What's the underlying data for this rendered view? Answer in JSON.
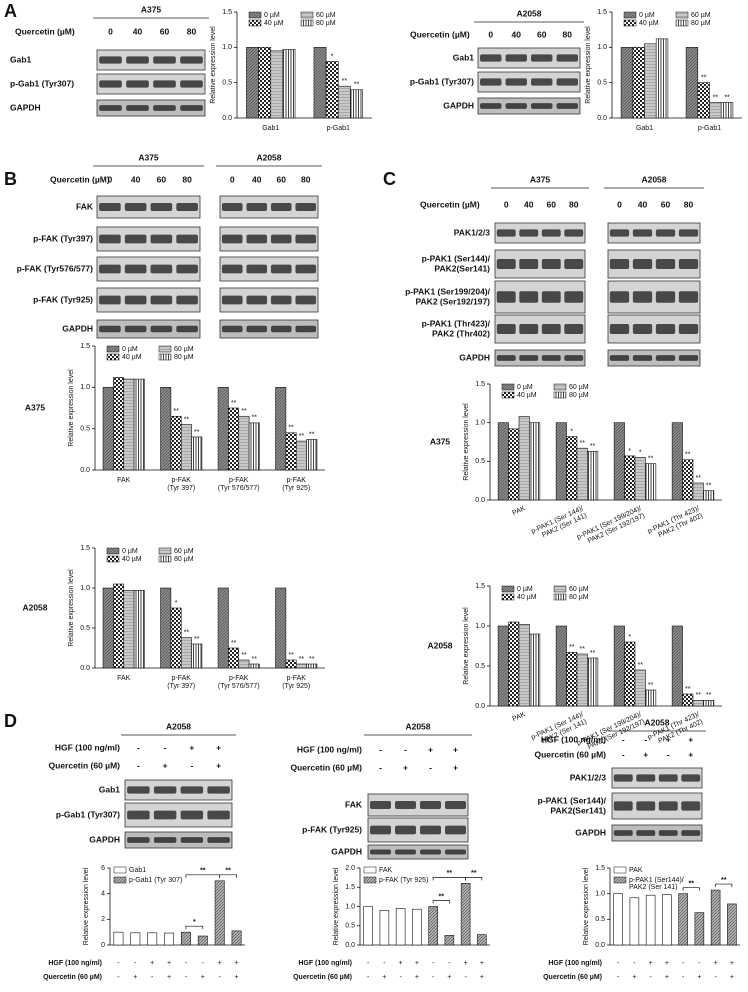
{
  "panel_letters": [
    "A",
    "B",
    "C",
    "D"
  ],
  "blots": [
    {
      "groups": [
        {
          "title": "A375",
          "doses": [
            "0",
            "40",
            "60",
            "80"
          ]
        }
      ],
      "treatment_label": "Quercetin (µM)",
      "rows": [
        "Gab1",
        "p-Gab1 (Tyr307)",
        "GAPDH"
      ]
    },
    {
      "groups": [
        {
          "title": "A2058",
          "doses": [
            "0",
            "40",
            "60",
            "80"
          ]
        }
      ],
      "treatment_label": "Quercetin (µM)",
      "rows": [
        "Gab1",
        "p-Gab1 (Tyr307)",
        "GAPDH"
      ]
    },
    {
      "groups": [
        {
          "title": "A375",
          "doses": [
            "0",
            "40",
            "60",
            "80"
          ]
        },
        {
          "title": "A2058",
          "doses": [
            "0",
            "40",
            "60",
            "80"
          ]
        }
      ],
      "treatment_label": "Quercetin (µM)",
      "rows": [
        "FAK",
        "p-FAK (Tyr397)",
        "p-FAK (Tyr576/577)",
        "p-FAK (Tyr925)",
        "GAPDH"
      ]
    },
    {
      "groups": [
        {
          "title": "A375",
          "doses": [
            "0",
            "40",
            "60",
            "80"
          ]
        },
        {
          "title": "A2058",
          "doses": [
            "0",
            "40",
            "60",
            "80"
          ]
        }
      ],
      "treatment_label": "Quercetin (µM)",
      "rows": [
        "PAK1/2/3",
        [
          "p-PAK1 (Ser144)/",
          "PAK2(Ser141)"
        ],
        [
          "p-PAK1 (Ser199/204)/",
          "PAK2 (Ser192/197)"
        ],
        [
          "p-PAK1 (Thr423)/",
          "PAK2 (Thr402)"
        ],
        "GAPDH"
      ]
    },
    {
      "groups": [
        {
          "title": "A2058"
        }
      ],
      "condition_rows": [
        {
          "label": "HGF (100 ng/ml)",
          "marks": [
            "-",
            "-",
            "+",
            "+"
          ]
        },
        {
          "label": "Quercetin (60 µM)",
          "marks": [
            "-",
            "+",
            "-",
            "+"
          ]
        }
      ],
      "rows": [
        "Gab1",
        "p-Gab1 (Tyr307)",
        "GAPDH"
      ]
    },
    {
      "groups": [
        {
          "title": "A2058"
        }
      ],
      "condition_rows": [
        {
          "label": "HGF (100 ng/ml)",
          "marks": [
            "-",
            "-",
            "+",
            "+"
          ]
        },
        {
          "label": "Quercetin (60 µM)",
          "marks": [
            "-",
            "+",
            "-",
            "+"
          ]
        }
      ],
      "rows": [
        "FAK",
        "p-FAK (Tyr925)",
        "GAPDH"
      ]
    },
    {
      "groups": [
        {
          "title": "A2058"
        }
      ],
      "condition_rows": [
        {
          "label": "HGF (100 ng/ml)",
          "marks": [
            "-",
            "-",
            "+",
            "+"
          ]
        },
        {
          "label": "Quercetin (60 µM)",
          "marks": [
            "-",
            "+",
            "-",
            "+"
          ]
        }
      ],
      "rows": [
        "PAK1/2/3",
        [
          "p-PAK1 (Ser144)/",
          "PAK2(Ser141)"
        ],
        "GAPDH"
      ]
    }
  ],
  "chart_data": [
    {
      "type": "bar",
      "y_label": "Relative expression level",
      "categories": [
        "Gab1",
        "p-Gab1"
      ],
      "series": [
        {
          "name": "0 µM",
          "pattern": "dense",
          "values": [
            1.0,
            1.0
          ]
        },
        {
          "name": "40 µM",
          "pattern": "checker",
          "values": [
            1.0,
            0.8
          ],
          "significance": [
            null,
            "*"
          ]
        },
        {
          "name": "60 µM",
          "pattern": "light",
          "values": [
            0.95,
            0.45
          ],
          "significance": [
            null,
            "**"
          ]
        },
        {
          "name": "80 µM",
          "pattern": "stripes",
          "values": [
            0.97,
            0.4
          ],
          "significance": [
            null,
            "**"
          ]
        }
      ],
      "ylim": [
        0,
        1.5
      ],
      "yticks": [
        {
          "value": 0,
          "label": "0.0"
        },
        0.5,
        {
          "value": 1,
          "label": "1.0"
        },
        1.5
      ]
    },
    {
      "type": "bar",
      "y_label": "Relative expression level",
      "categories": [
        "Gab1",
        "p-Gab1"
      ],
      "series": [
        {
          "name": "0 µM",
          "pattern": "dense",
          "values": [
            1.0,
            1.0
          ]
        },
        {
          "name": "40 µM",
          "pattern": "checker",
          "values": [
            1.0,
            0.5
          ],
          "significance": [
            null,
            "**"
          ]
        },
        {
          "name": "60 µM",
          "pattern": "light",
          "values": [
            1.05,
            0.22
          ],
          "significance": [
            null,
            "**"
          ]
        },
        {
          "name": "80 µM",
          "pattern": "stripes",
          "values": [
            1.12,
            0.22
          ],
          "significance": [
            null,
            "**"
          ]
        }
      ],
      "ylim": [
        0,
        1.5
      ],
      "yticks": [
        {
          "value": 0,
          "label": "0.0"
        },
        0.5,
        {
          "value": 1,
          "label": "1.0"
        },
        1.5
      ]
    },
    {
      "type": "bar",
      "row_label": "A375",
      "y_label": "Relative expression level",
      "categories": [
        "FAK",
        [
          "p-FAK",
          "(Tyr 397)"
        ],
        [
          "p-FAK",
          "(Tyr 576/577)"
        ],
        [
          "p-FAK",
          "(Tyr 925)"
        ]
      ],
      "series": [
        {
          "name": "0 µM",
          "pattern": "dense",
          "values": [
            1.0,
            1.0,
            1.0,
            1.0
          ]
        },
        {
          "name": "40 µM",
          "pattern": "checker",
          "values": [
            1.12,
            0.65,
            0.75,
            0.45
          ],
          "significance": [
            null,
            "**",
            "**",
            "**"
          ]
        },
        {
          "name": "60 µM",
          "pattern": "light",
          "values": [
            1.1,
            0.55,
            0.65,
            0.35
          ],
          "significance": [
            null,
            "**",
            "**",
            "**"
          ]
        },
        {
          "name": "80 µM",
          "pattern": "stripes",
          "values": [
            1.1,
            0.4,
            0.57,
            0.37
          ],
          "significance": [
            null,
            "**",
            "**",
            "**"
          ]
        }
      ],
      "ylim": [
        0,
        1.5
      ],
      "yticks": [
        {
          "value": 0,
          "label": "0.0"
        },
        0.5,
        {
          "value": 1,
          "label": "1.0"
        },
        1.5
      ]
    },
    {
      "type": "bar",
      "row_label": "A2058",
      "y_label": "Relative expression level",
      "categories": [
        "FAK",
        [
          "p-FAK",
          "(Tyr 397)"
        ],
        [
          "p-FAK",
          "(Tyr 576/577)"
        ],
        [
          "p-FAK",
          "(Tyr 925)"
        ]
      ],
      "series": [
        {
          "name": "0 µM",
          "pattern": "dense",
          "values": [
            1.0,
            1.0,
            1.0,
            1.0
          ]
        },
        {
          "name": "40 µM",
          "pattern": "checker",
          "values": [
            1.05,
            0.75,
            0.25,
            0.1
          ],
          "significance": [
            null,
            "*",
            "**",
            "**"
          ]
        },
        {
          "name": "60 µM",
          "pattern": "light",
          "values": [
            0.97,
            0.38,
            0.1,
            0.05
          ],
          "significance": [
            null,
            "**",
            "**",
            "**"
          ]
        },
        {
          "name": "80 µM",
          "pattern": "stripes",
          "values": [
            0.97,
            0.3,
            0.05,
            0.05
          ],
          "significance": [
            null,
            "**",
            "**",
            "**"
          ]
        }
      ],
      "ylim": [
        0,
        1.5
      ],
      "yticks": [
        {
          "value": 0,
          "label": "0.0"
        },
        0.5,
        {
          "value": 1,
          "label": "1.0"
        },
        1.5
      ]
    },
    {
      "type": "bar",
      "row_label": "A375",
      "y_label": "Relative expression level",
      "categories": [
        "PAK",
        [
          "p-PAK1 (Ser 144)/",
          "PAK2 (Ser 141)"
        ],
        [
          "p-PAK1 (Ser 199/204)/",
          "PAK2 (Ser 192/197)"
        ],
        [
          "p-PAK1 (Thr 423)/",
          "PAK2 (Thr 402)"
        ]
      ],
      "series": [
        {
          "name": "0 µM",
          "pattern": "dense",
          "values": [
            1.0,
            1.0,
            1.0,
            1.0
          ]
        },
        {
          "name": "40 µM",
          "pattern": "checker",
          "values": [
            0.92,
            0.82,
            0.57,
            0.52
          ],
          "significance": [
            null,
            "*",
            "*",
            "**"
          ]
        },
        {
          "name": "60 µM",
          "pattern": "light",
          "values": [
            1.08,
            0.67,
            0.55,
            0.22
          ],
          "significance": [
            null,
            "**",
            "*",
            "**"
          ]
        },
        {
          "name": "80 µM",
          "pattern": "stripes",
          "values": [
            1.0,
            0.63,
            0.47,
            0.12
          ],
          "significance": [
            null,
            "**",
            "**",
            "**"
          ]
        }
      ],
      "ylim": [
        0,
        1.5
      ],
      "yticks": [
        {
          "value": 0,
          "label": "0.0"
        },
        0.5,
        {
          "value": 1,
          "label": "1.0"
        },
        1.5
      ]
    },
    {
      "type": "bar",
      "row_label": "A2058",
      "y_label": "Relative expression level",
      "categories": [
        "PAK",
        [
          "p-PAK1 (Ser 144)/",
          "PAK2 (Ser 141)"
        ],
        [
          "p-PAK1 (Ser 199/204)/",
          "PAK2 (Ser 192/197)"
        ],
        [
          "p-PAK1 (Thr 423)/",
          "PAK2 (Thr 402)"
        ]
      ],
      "series": [
        {
          "name": "0 µM",
          "pattern": "dense",
          "values": [
            1.0,
            1.0,
            1.0,
            1.0
          ]
        },
        {
          "name": "40 µM",
          "pattern": "checker",
          "values": [
            1.05,
            0.67,
            0.8,
            0.15
          ],
          "significance": [
            null,
            "**",
            "*",
            "**"
          ]
        },
        {
          "name": "60 µM",
          "pattern": "light",
          "values": [
            1.02,
            0.65,
            0.45,
            0.07
          ],
          "significance": [
            null,
            "**",
            "**",
            "**"
          ]
        },
        {
          "name": "80 µM",
          "pattern": "stripes",
          "values": [
            0.9,
            0.6,
            0.2,
            0.07
          ],
          "significance": [
            null,
            "**",
            "**",
            "**"
          ]
        }
      ],
      "ylim": [
        0,
        1.5
      ],
      "yticks": [
        {
          "value": 0,
          "label": "0.0"
        },
        0.5,
        {
          "value": 1,
          "label": "1.0"
        },
        1.5
      ]
    },
    {
      "type": "bar",
      "y_label": "Relative expression level",
      "condition_rows": [
        {
          "label": "HGF (100 ng/ml)",
          "marks": [
            "-",
            "-",
            "+",
            "+",
            "-",
            "-",
            "+",
            "+"
          ]
        },
        {
          "label": "Quercetin (60 µM)",
          "marks": [
            "-",
            "+",
            "-",
            "+",
            "-",
            "+",
            "-",
            "+"
          ]
        }
      ],
      "series": [
        {
          "name": "Gab1",
          "pattern": "white",
          "values": [
            1.0,
            0.95,
            0.95,
            0.93,
            null,
            null,
            null,
            null
          ]
        },
        {
          "name": "p-Gab1 (Tyr 307)",
          "pattern": "lines",
          "values": [
            null,
            null,
            null,
            null,
            1.0,
            0.7,
            5.0,
            1.1
          ]
        }
      ],
      "brackets": [
        {
          "text": "*",
          "from": 4,
          "to": 5
        },
        {
          "text": "**",
          "from": 4,
          "to": 6
        },
        {
          "text": "**",
          "from": 6,
          "to": 7
        }
      ],
      "ylim": [
        0,
        6
      ],
      "yticks": [
        0,
        2,
        4,
        6
      ]
    },
    {
      "type": "bar",
      "y_label": "Relative expression level",
      "condition_rows": [
        {
          "label": "HGF (100 ng/ml)",
          "marks": [
            "-",
            "-",
            "+",
            "+",
            "-",
            "-",
            "+",
            "+"
          ]
        },
        {
          "label": "Quercetin (60 µM)",
          "marks": [
            "-",
            "+",
            "-",
            "+",
            "-",
            "+",
            "-",
            "+"
          ]
        }
      ],
      "series": [
        {
          "name": "FAK",
          "pattern": "white",
          "values": [
            1.0,
            0.9,
            0.95,
            0.93,
            null,
            null,
            null,
            null
          ]
        },
        {
          "name": "p-FAK (Tyr 925)",
          "pattern": "lines",
          "values": [
            null,
            null,
            null,
            null,
            1.0,
            0.25,
            1.6,
            0.27
          ]
        }
      ],
      "brackets": [
        {
          "text": "**",
          "from": 4,
          "to": 5
        },
        {
          "text": "**",
          "from": 4,
          "to": 6
        },
        {
          "text": "**",
          "from": 6,
          "to": 7
        }
      ],
      "ylim": [
        0,
        2
      ],
      "yticks": [
        {
          "value": 0,
          "label": "0.0"
        },
        0.5,
        {
          "value": 1,
          "label": "1.0"
        },
        1.5,
        {
          "value": 2,
          "label": "2.0"
        }
      ]
    },
    {
      "type": "bar",
      "y_label": "Relative expression level",
      "condition_rows": [
        {
          "label": "HGF (100 ng/ml)",
          "marks": [
            "-",
            "-",
            "+",
            "+",
            "-",
            "-",
            "+",
            "+"
          ]
        },
        {
          "label": "Quercetin (60 µM)",
          "marks": [
            "-",
            "+",
            "-",
            "+",
            "-",
            "+",
            "-",
            "+"
          ]
        }
      ],
      "series": [
        {
          "name": "PAK",
          "pattern": "white",
          "values": [
            1.0,
            0.92,
            0.97,
            0.98,
            null,
            null,
            null,
            null
          ]
        },
        {
          "name": [
            "p-PAK1 (Ser144)/",
            "PAK2 (Ser 141)"
          ],
          "pattern": "lines",
          "values": [
            null,
            null,
            null,
            null,
            1.0,
            0.63,
            1.07,
            0.8
          ]
        }
      ],
      "brackets": [
        {
          "text": "**",
          "from": 4,
          "to": 5
        },
        {
          "text": "**",
          "from": 6,
          "to": 7
        }
      ],
      "ylim": [
        0,
        1.5
      ],
      "yticks": [
        {
          "value": 0,
          "label": "0.0"
        },
        0.5,
        {
          "value": 1,
          "label": "1.0"
        },
        1.5
      ]
    }
  ]
}
